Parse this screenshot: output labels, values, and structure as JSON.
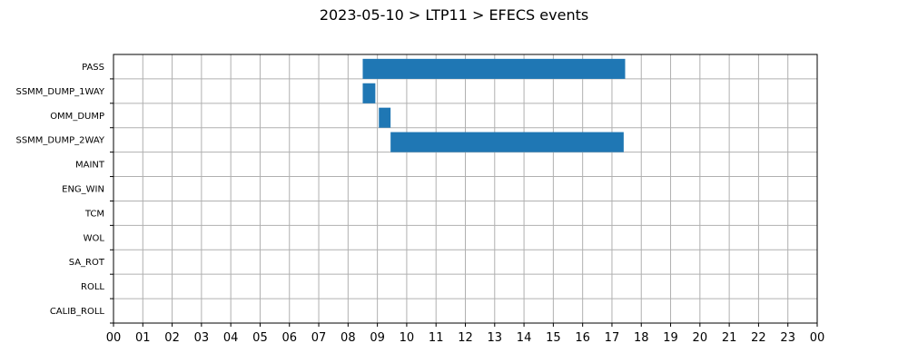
{
  "chart_data": {
    "type": "bar",
    "orientation": "horizontal",
    "title": "2023-05-10 > LTP11 > EFECS events",
    "xlabel": "",
    "ylabel": "",
    "xlim": [
      0,
      24
    ],
    "grid": true,
    "categories": [
      "PASS",
      "SSMM_DUMP_1WAY",
      "OMM_DUMP",
      "SSMM_DUMP_2WAY",
      "MAINT",
      "ENG_WIN",
      "TCM",
      "WOL",
      "SA_ROT",
      "ROLL",
      "CALIB_ROLL"
    ],
    "x_tick_labels": [
      "00",
      "01",
      "02",
      "03",
      "04",
      "05",
      "06",
      "07",
      "08",
      "09",
      "10",
      "11",
      "12",
      "13",
      "14",
      "15",
      "16",
      "17",
      "18",
      "19",
      "20",
      "21",
      "22",
      "23",
      "00"
    ],
    "bar_color": "#1f77b4",
    "events": [
      {
        "category": "PASS",
        "start": 8.5,
        "end": 17.45
      },
      {
        "category": "SSMM_DUMP_1WAY",
        "start": 8.5,
        "end": 8.93
      },
      {
        "category": "OMM_DUMP",
        "start": 9.05,
        "end": 9.45
      },
      {
        "category": "SSMM_DUMP_2WAY",
        "start": 9.45,
        "end": 17.4
      }
    ]
  }
}
